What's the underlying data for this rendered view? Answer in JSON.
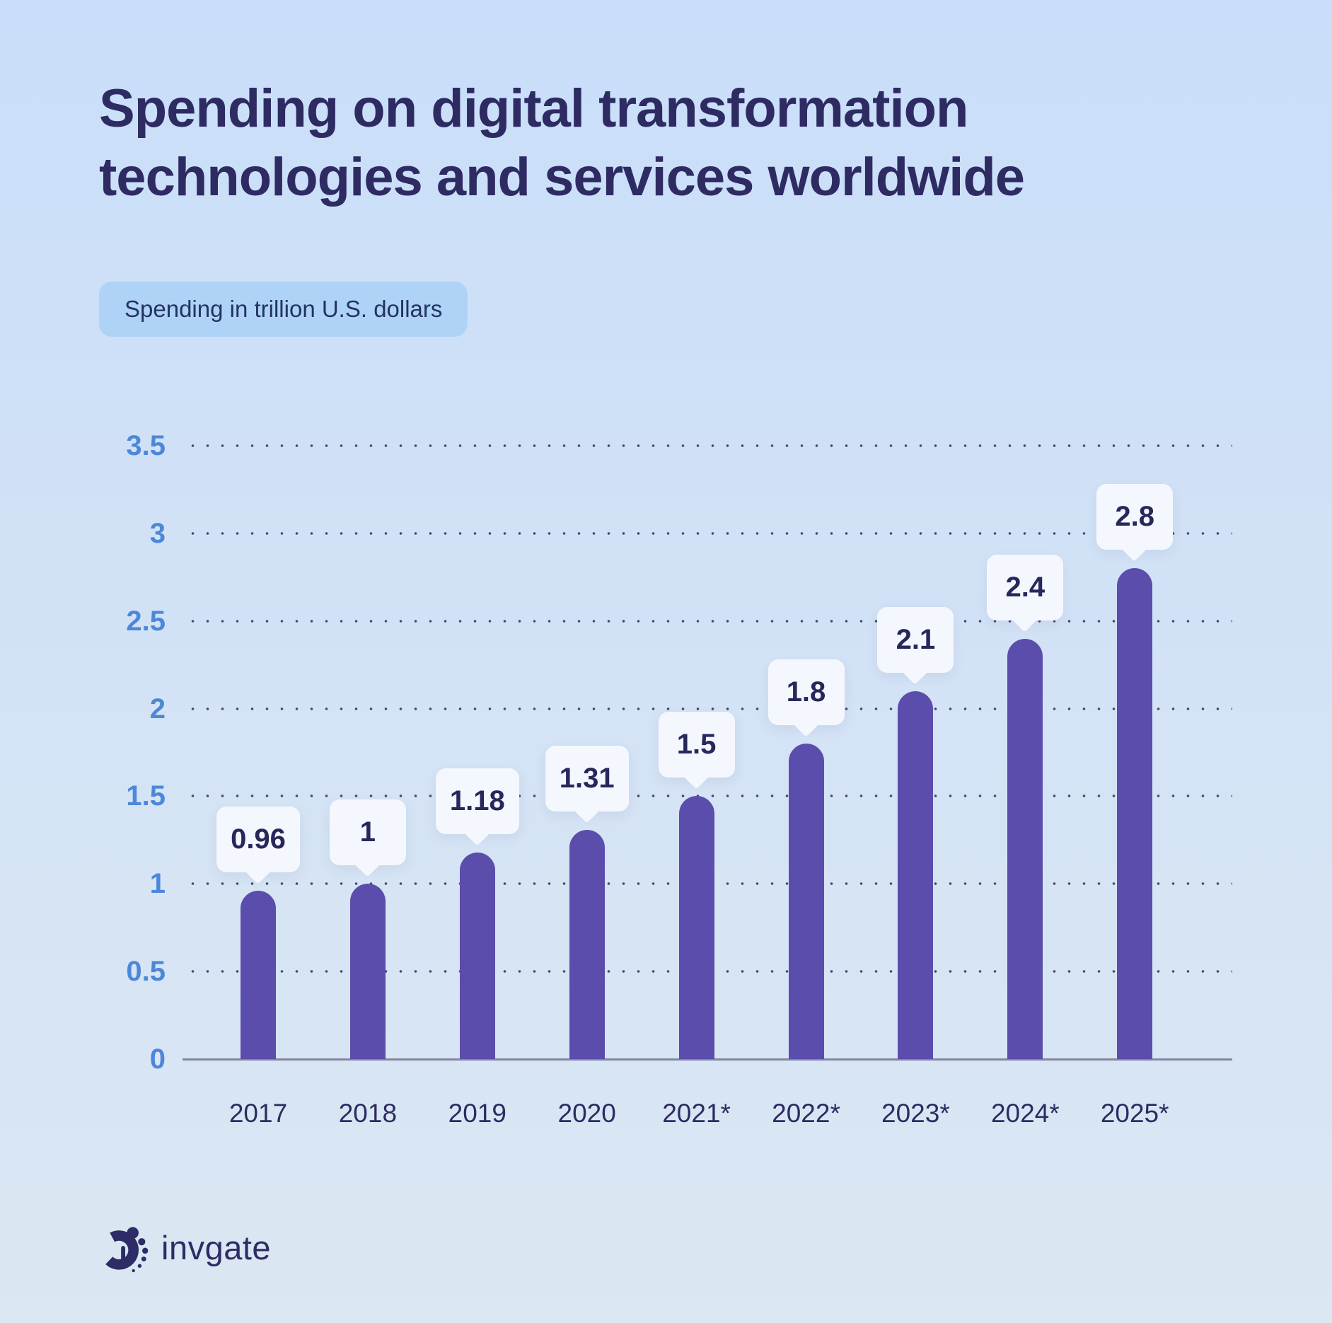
{
  "title": {
    "line1": "Spending on digital transformation",
    "line2": "technologies and services worldwide"
  },
  "subtitle_badge": "Spending in trillion U.S. dollars",
  "logo": {
    "text": "invgate"
  },
  "colors": {
    "background_top": "#c9defa",
    "background_bottom": "#dbe7f2",
    "title_text": "#2e2b63",
    "badge_background": "#aed3f7",
    "y_axis_label": "#4c87d9",
    "bar": "#5b4dab",
    "callout_background": "#f4f7fd",
    "callout_text": "#27275c",
    "axis_line": "#8087a0"
  },
  "chart_data": {
    "type": "bar",
    "title": "Spending on digital transformation technologies and services worldwide",
    "unit_label": "Spending in trillion U.S. dollars",
    "categories": [
      "2017",
      "2018",
      "2019",
      "2020",
      "2021*",
      "2022*",
      "2023*",
      "2024*",
      "2025*"
    ],
    "values": [
      0.96,
      1,
      1.18,
      1.31,
      1.5,
      1.8,
      2.1,
      2.4,
      2.8
    ],
    "value_labels": [
      "0.96",
      "1",
      "1.18",
      "1.31",
      "1.5",
      "1.8",
      "2.1",
      "2.4",
      "2.8"
    ],
    "xlabel": "",
    "ylabel": "Spending in trillion U.S. dollars",
    "ylim": [
      0,
      3.5
    ],
    "yticks": [
      0,
      0.5,
      1,
      1.5,
      2,
      2.5,
      3,
      3.5
    ],
    "ytick_labels": [
      "0",
      "0.5",
      "1",
      "1.5",
      "2",
      "2.5",
      "3",
      "3.5"
    ],
    "grid": "dotted-horizontal",
    "legend": "none"
  }
}
